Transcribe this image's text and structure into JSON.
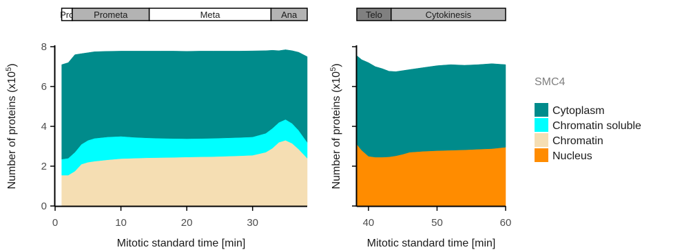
{
  "legend": {
    "title": "SMC4",
    "items": [
      {
        "label": "Cytoplasm",
        "color": "#008b8b"
      },
      {
        "label": "Chromatin soluble",
        "color": "#00ffff"
      },
      {
        "label": "Chromatin",
        "color": "#f5deb3"
      },
      {
        "label": "Nucleus",
        "color": "#ff8c00"
      }
    ]
  },
  "chart_data": [
    {
      "type": "area",
      "stacked": true,
      "xlabel": "Mitotic standard time [min]",
      "ylabel": "Number of proteins (x10",
      "ylabel_superscript": "5",
      "ylabel_suffix": ")",
      "xlim": [
        0,
        38.3
      ],
      "ylim": [
        0,
        8
      ],
      "xticks": [
        0,
        10,
        20,
        30
      ],
      "yticks": [
        0,
        2,
        4,
        6,
        8
      ],
      "phases": [
        {
          "label": "Pro",
          "start": 1.0,
          "end": 2.6,
          "color": "#ffffff"
        },
        {
          "label": "Prometa",
          "start": 2.6,
          "end": 14.3,
          "color": "#b3b3b3"
        },
        {
          "label": "Meta",
          "start": 14.3,
          "end": 32.8,
          "color": "#ffffff"
        },
        {
          "label": "Ana",
          "start": 32.8,
          "end": 38.3,
          "color": "#b3b3b3"
        }
      ],
      "x": [
        1,
        2,
        3,
        4,
        5,
        6,
        8,
        10,
        12,
        14,
        16,
        18,
        20,
        22,
        24,
        26,
        28,
        30,
        32,
        33,
        34,
        35,
        36,
        37,
        38.3
      ],
      "series": [
        {
          "name": "Chromatin",
          "color": "#f5deb3",
          "values": [
            1.55,
            1.55,
            1.75,
            2.1,
            2.2,
            2.25,
            2.32,
            2.38,
            2.4,
            2.42,
            2.43,
            2.44,
            2.46,
            2.47,
            2.48,
            2.5,
            2.52,
            2.55,
            2.7,
            2.9,
            3.2,
            3.3,
            3.15,
            2.85,
            2.4
          ]
        },
        {
          "name": "Chromatin soluble",
          "color": "#00ffff",
          "values": [
            0.8,
            0.85,
            0.95,
            1.0,
            1.1,
            1.15,
            1.15,
            1.12,
            1.05,
            1.0,
            0.97,
            0.95,
            0.92,
            0.92,
            0.92,
            0.92,
            0.92,
            0.92,
            0.95,
            1.0,
            1.0,
            1.05,
            1.0,
            0.95,
            0.8
          ]
        },
        {
          "name": "Cytoplasm",
          "color": "#008b8b",
          "values": [
            4.75,
            4.8,
            4.9,
            4.55,
            4.4,
            4.35,
            4.3,
            4.28,
            4.33,
            4.36,
            4.38,
            4.39,
            4.39,
            4.39,
            4.38,
            4.36,
            4.34,
            4.32,
            4.15,
            3.92,
            3.6,
            3.5,
            3.65,
            3.92,
            4.3
          ]
        }
      ]
    },
    {
      "type": "area",
      "stacked": true,
      "xlabel": "Mitotic standard time [min]",
      "ylabel": "Number of proteins (x10",
      "ylabel_superscript": "5",
      "ylabel_suffix": ")",
      "xlim": [
        38.3,
        60
      ],
      "ylim": [
        0,
        8
      ],
      "xticks": [
        40,
        50,
        60
      ],
      "yticks": [
        0,
        2,
        4,
        6,
        8
      ],
      "phases": [
        {
          "label": "Telo",
          "start": 38.3,
          "end": 43.3,
          "color": "#808080"
        },
        {
          "label": "Cytokinesis",
          "start": 43.3,
          "end": 60,
          "color": "#b3b3b3"
        }
      ],
      "x": [
        38.3,
        39,
        40,
        41,
        42,
        43,
        44,
        45,
        46,
        48,
        50,
        52,
        54,
        56,
        58,
        60
      ],
      "series": [
        {
          "name": "Nucleus",
          "color": "#ff8c00",
          "values": [
            3.1,
            2.8,
            2.5,
            2.45,
            2.45,
            2.47,
            2.52,
            2.6,
            2.7,
            2.75,
            2.78,
            2.8,
            2.82,
            2.85,
            2.88,
            2.95
          ]
        },
        {
          "name": "Cytoplasm",
          "color": "#008b8b",
          "values": [
            4.45,
            4.55,
            4.7,
            4.55,
            4.45,
            4.3,
            4.23,
            4.2,
            4.15,
            4.2,
            4.27,
            4.3,
            4.25,
            4.25,
            4.27,
            4.15
          ]
        }
      ]
    }
  ]
}
